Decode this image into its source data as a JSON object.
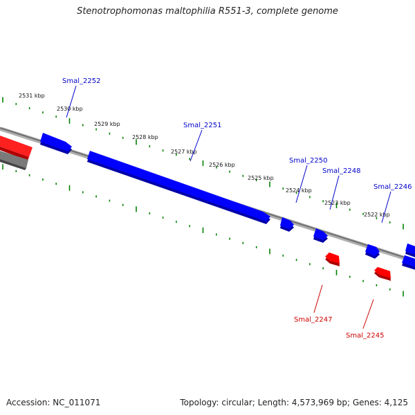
{
  "title": "Stenotrophomonas maltophilia R551-3, complete genome",
  "footer": {
    "accession": "Accession: NC_011071",
    "summary": "Topology: circular; Length: 4,573,969 bp; Genes: 4,125"
  },
  "scale": {
    "ticks": [
      "2531 kbp",
      "2530 kbp",
      "2529 kbp",
      "2528 kbp",
      "2527 kbp",
      "2526 kbp",
      "2525 kbp",
      "2524 kbp",
      "2523 kbp",
      "2522 kbp"
    ]
  },
  "genes": [
    {
      "name": "Smal_2252",
      "strand": "+",
      "color": "#0000cc"
    },
    {
      "name": "Smal_2251",
      "strand": "+",
      "color": "#0000cc"
    },
    {
      "name": "Smal_2250",
      "strand": "+",
      "color": "#0000cc"
    },
    {
      "name": "Smal_2248",
      "strand": "+",
      "color": "#0000cc"
    },
    {
      "name": "Smal_2246",
      "strand": "+",
      "color": "#0000cc"
    },
    {
      "name": "Smal_2247",
      "strand": "-",
      "color": "#cc0000"
    },
    {
      "name": "Smal_2245",
      "strand": "-",
      "color": "#cc0000"
    }
  ],
  "colors": {
    "forward": "#0000ff",
    "reverse": "#ff0000",
    "backbone": "#808080",
    "tick": "#008000"
  }
}
